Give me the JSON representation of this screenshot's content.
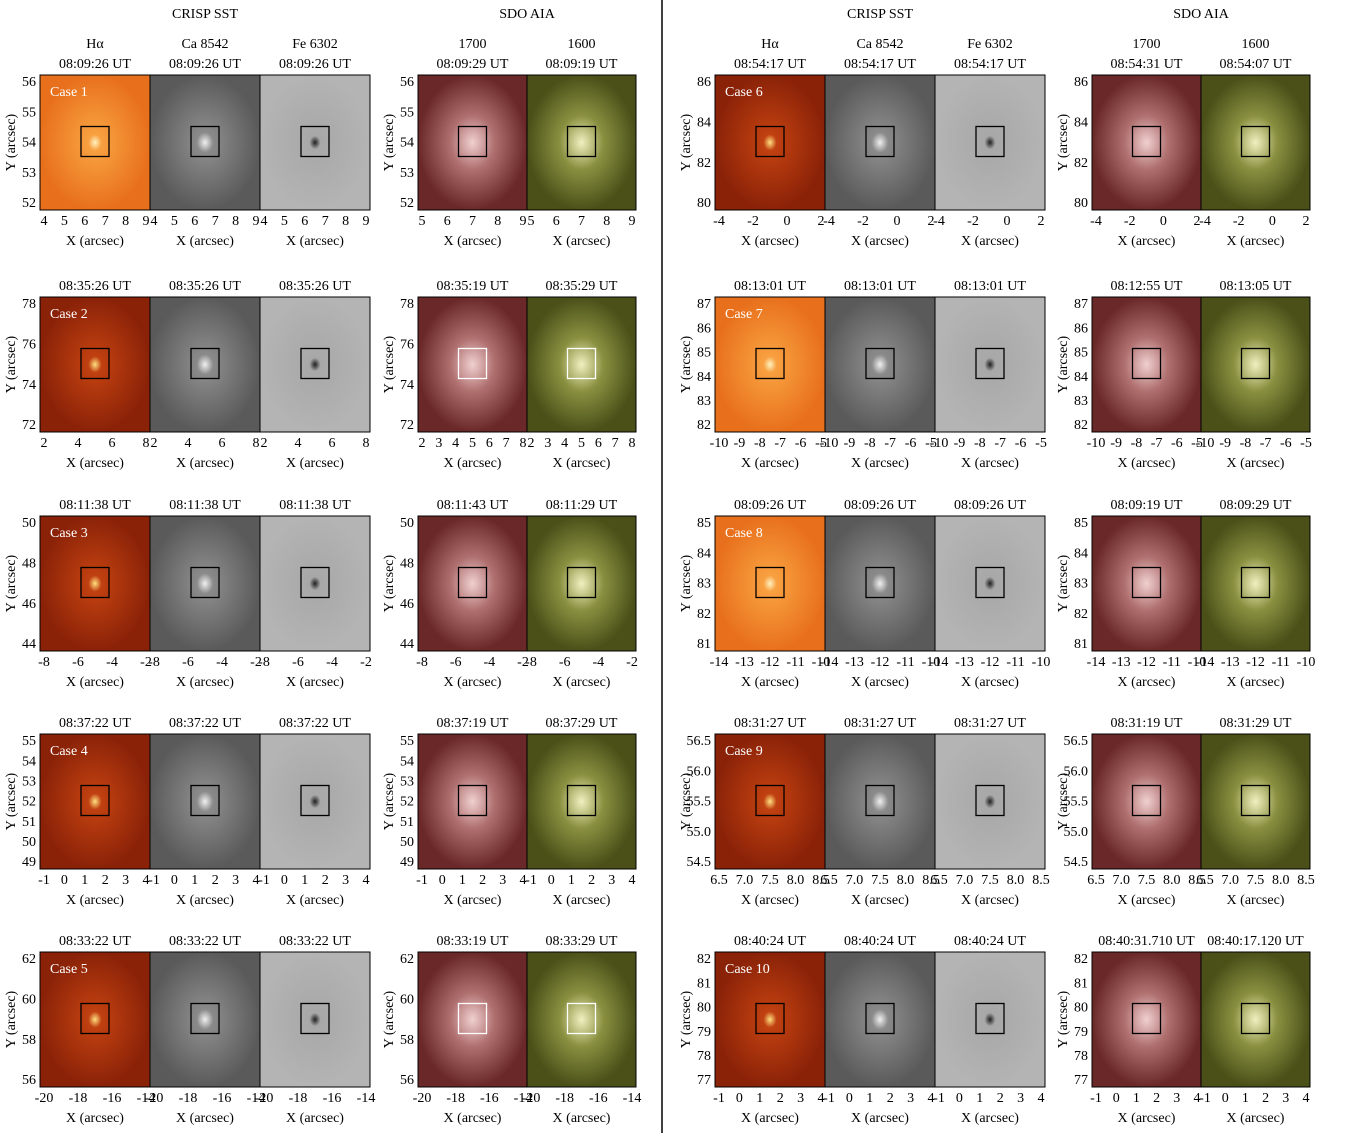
{
  "headers": {
    "sst": "CRISP SST",
    "aia": "SDO AIA"
  },
  "channels": {
    "sst": [
      "Hα",
      "Ca 8542",
      "Fe 6302"
    ],
    "aia": [
      "1700",
      "1600"
    ]
  },
  "axis_labels": {
    "x": "X (arcsec)",
    "y": "Y (arcsec)"
  },
  "cases": [
    {
      "label": "Case 1",
      "sst_times": [
        "08:09:26 UT",
        "08:09:26 UT",
        "08:09:26 UT"
      ],
      "aia_times": [
        "08:09:29 UT",
        "08:09:19 UT"
      ],
      "sst_yticks": [
        "52",
        "53",
        "54",
        "55",
        "56"
      ],
      "sst_xticks": [
        "4",
        "5",
        "6",
        "7",
        "8",
        "9"
      ],
      "aia_yticks": [
        "52",
        "53",
        "54",
        "55",
        "56"
      ],
      "aia_xticks": [
        "5",
        "6",
        "7",
        "8",
        "9"
      ]
    },
    {
      "label": "Case 2",
      "sst_times": [
        "08:35:26 UT",
        "08:35:26 UT",
        "08:35:26 UT"
      ],
      "aia_times": [
        "08:35:19 UT",
        "08:35:29 UT"
      ],
      "sst_yticks": [
        "72",
        "74",
        "76",
        "78"
      ],
      "sst_xticks": [
        "2",
        "4",
        "6",
        "8"
      ],
      "aia_yticks": [
        "72",
        "74",
        "76",
        "78"
      ],
      "aia_xticks": [
        "2",
        "3",
        "4",
        "5",
        "6",
        "7",
        "8"
      ]
    },
    {
      "label": "Case 3",
      "sst_times": [
        "08:11:38 UT",
        "08:11:38 UT",
        "08:11:38 UT"
      ],
      "aia_times": [
        "08:11:43 UT",
        "08:11:29 UT"
      ],
      "sst_yticks": [
        "44",
        "46",
        "48",
        "50"
      ],
      "sst_xticks": [
        "-8",
        "-6",
        "-4",
        "-2"
      ],
      "aia_yticks": [
        "44",
        "46",
        "48",
        "50"
      ],
      "aia_xticks": [
        "-8",
        "-6",
        "-4",
        "-2"
      ]
    },
    {
      "label": "Case 4",
      "sst_times": [
        "08:37:22 UT",
        "08:37:22 UT",
        "08:37:22 UT"
      ],
      "aia_times": [
        "08:37:19 UT",
        "08:37:29 UT"
      ],
      "sst_yticks": [
        "49",
        "50",
        "51",
        "52",
        "53",
        "54",
        "55"
      ],
      "sst_xticks": [
        "-1",
        "0",
        "1",
        "2",
        "3",
        "4"
      ],
      "aia_yticks": [
        "49",
        "50",
        "51",
        "52",
        "53",
        "54",
        "55"
      ],
      "aia_xticks": [
        "-1",
        "0",
        "1",
        "2",
        "3",
        "4"
      ]
    },
    {
      "label": "Case 5",
      "sst_times": [
        "08:33:22 UT",
        "08:33:22 UT",
        "08:33:22 UT"
      ],
      "aia_times": [
        "08:33:19 UT",
        "08:33:29 UT"
      ],
      "sst_yticks": [
        "56",
        "58",
        "60",
        "62"
      ],
      "sst_xticks": [
        "-20",
        "-18",
        "-16",
        "-14"
      ],
      "aia_yticks": [
        "56",
        "58",
        "60",
        "62"
      ],
      "aia_xticks": [
        "-20",
        "-18",
        "-16",
        "-14"
      ]
    },
    {
      "label": "Case 6",
      "sst_times": [
        "08:54:17 UT",
        "08:54:17 UT",
        "08:54:17 UT"
      ],
      "aia_times": [
        "08:54:31 UT",
        "08:54:07 UT"
      ],
      "sst_yticks": [
        "80",
        "82",
        "84",
        "86"
      ],
      "sst_xticks": [
        "-4",
        "-2",
        "0",
        "2"
      ],
      "aia_yticks": [
        "80",
        "82",
        "84",
        "86"
      ],
      "aia_xticks": [
        "-4",
        "-2",
        "0",
        "2"
      ]
    },
    {
      "label": "Case 7",
      "sst_times": [
        "08:13:01 UT",
        "08:13:01 UT",
        "08:13:01 UT"
      ],
      "aia_times": [
        "08:12:55 UT",
        "08:13:05 UT"
      ],
      "sst_yticks": [
        "82",
        "83",
        "84",
        "85",
        "86",
        "87"
      ],
      "sst_xticks": [
        "-10",
        "-9",
        "-8",
        "-7",
        "-6",
        "-5"
      ],
      "aia_yticks": [
        "82",
        "83",
        "84",
        "85",
        "86",
        "87"
      ],
      "aia_xticks": [
        "-10",
        "-9",
        "-8",
        "-7",
        "-6",
        "-5"
      ]
    },
    {
      "label": "Case 8",
      "sst_times": [
        "08:09:26 UT",
        "08:09:26 UT",
        "08:09:26 UT"
      ],
      "aia_times": [
        "08:09:19 UT",
        "08:09:29 UT"
      ],
      "sst_yticks": [
        "81",
        "82",
        "83",
        "84",
        "85"
      ],
      "sst_xticks": [
        "-14",
        "-13",
        "-12",
        "-11",
        "-10"
      ],
      "aia_yticks": [
        "81",
        "82",
        "83",
        "84",
        "85"
      ],
      "aia_xticks": [
        "-14",
        "-13",
        "-12",
        "-11",
        "-10"
      ]
    },
    {
      "label": "Case 9",
      "sst_times": [
        "08:31:27 UT",
        "08:31:27 UT",
        "08:31:27 UT"
      ],
      "aia_times": [
        "08:31:19 UT",
        "08:31:29 UT"
      ],
      "sst_yticks": [
        "54.5",
        "55.0",
        "55.5",
        "56.0",
        "56.5"
      ],
      "sst_xticks": [
        "6.5",
        "7.0",
        "7.5",
        "8.0",
        "8.5"
      ],
      "aia_yticks": [
        "54.5",
        "55.0",
        "55.5",
        "56.0",
        "56.5"
      ],
      "aia_xticks": [
        "6.5",
        "7.0",
        "7.5",
        "8.0",
        "8.5"
      ]
    },
    {
      "label": "Case 10",
      "sst_times": [
        "08:40:24 UT",
        "08:40:24 UT",
        "08:40:24 UT"
      ],
      "aia_times": [
        "08:40:31.710 UT",
        "08:40:17.120 UT"
      ],
      "sst_yticks": [
        "77",
        "78",
        "79",
        "80",
        "81",
        "82"
      ],
      "sst_xticks": [
        "-1",
        "0",
        "1",
        "2",
        "3",
        "4"
      ],
      "aia_yticks": [
        "77",
        "78",
        "79",
        "80",
        "81",
        "82"
      ],
      "aia_xticks": [
        "-1",
        "0",
        "1",
        "2",
        "3",
        "4"
      ]
    }
  ]
}
